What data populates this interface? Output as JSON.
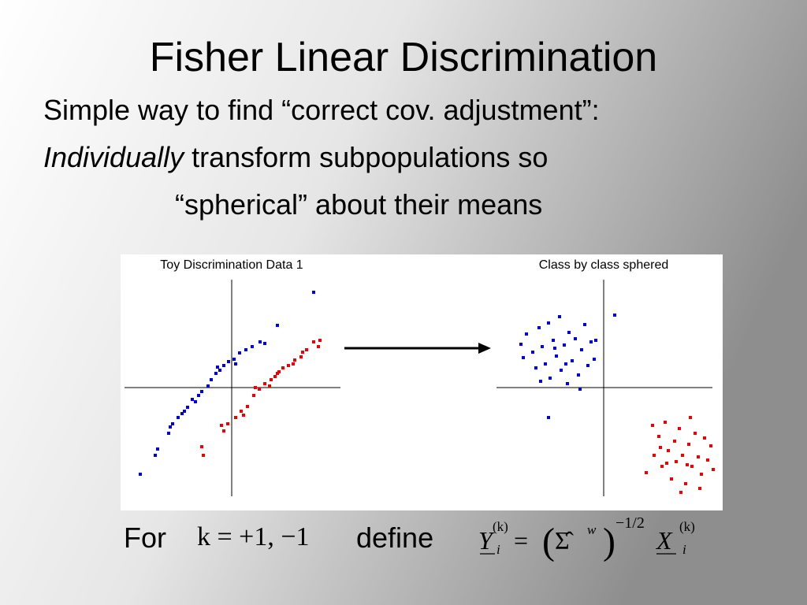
{
  "slide": {
    "title": "Fisher Linear Discrimination",
    "line1": "Simple way to find “correct cov. adjustment”:",
    "line2_italic": "Individually",
    "line2_rest": " transform subpopulations so",
    "line3": "“spherical” about their means"
  },
  "formula": {
    "for": "For",
    "k": "k = +1, −1",
    "define": "define",
    "lhs": "Y",
    "lhs_sup": "(k)",
    "lhs_sub": "i",
    "eq": "=",
    "lparen": "(",
    "sigma": "Σ̂",
    "sigma_sup": "w",
    "rparen": ")",
    "power": "−1/2",
    "rhs": "X",
    "rhs_sup": "(k)",
    "rhs_sub": "i"
  },
  "chart_data": [
    {
      "type": "scatter",
      "title": "Toy Discrimination Data 1",
      "xlim": [
        -14,
        14
      ],
      "ylim": [
        -14,
        14
      ],
      "series": [
        {
          "color": "#0000dd",
          "x": [
            -11.6,
            -9.7,
            -9.4,
            -8.0,
            -7.5,
            -6.8,
            -6.3,
            -5.6,
            -5.0,
            -4.6,
            -3.8,
            -3.0,
            -2.6,
            -2.0,
            -1.5,
            -1.0,
            -0.4,
            0.3,
            1.0,
            1.8,
            2.6,
            3.6,
            4.2,
            5.8,
            10.4,
            -7.8,
            -4.2,
            -1.8,
            -6.0,
            0.5
          ],
          "values": [
            -11.0,
            -8.6,
            -7.8,
            -5.8,
            -4.6,
            -3.8,
            -3.3,
            -2.5,
            -1.5,
            -1.8,
            -0.5,
            0.2,
            1.0,
            1.8,
            2.2,
            2.8,
            3.3,
            3.6,
            4.4,
            4.8,
            5.2,
            5.8,
            5.6,
            7.9,
            12.1,
            -5.0,
            -1.0,
            2.6,
            -3.0,
            3.0
          ]
        },
        {
          "color": "#ee0000",
          "x": [
            -1.3,
            -0.5,
            0.5,
            1.2,
            2.0,
            2.8,
            3.5,
            4.2,
            5.0,
            5.8,
            6.5,
            7.2,
            8.0,
            8.8,
            9.5,
            10.4,
            11.2,
            3.0,
            6.0,
            9.0,
            1.5,
            7.8,
            4.8,
            -3.8,
            -3.6,
            -1.0,
            11.0,
            5.5
          ],
          "values": [
            -4.8,
            -4.6,
            -3.8,
            -3.0,
            -2.4,
            -1.0,
            -0.2,
            0.5,
            1.0,
            1.8,
            2.5,
            2.8,
            3.5,
            3.9,
            4.8,
            5.8,
            6.0,
            0.0,
            2.0,
            4.5,
            -3.5,
            3.0,
            0.2,
            -7.5,
            -8.6,
            -5.5,
            5.2,
            1.4
          ]
        }
      ]
    },
    {
      "type": "scatter",
      "title": "Class by class sphered",
      "xlim": [
        -14,
        14
      ],
      "ylim": [
        -14,
        14
      ],
      "series": [
        {
          "color": "#0000dd",
          "x": [
            -10.5,
            -10.2,
            -9.8,
            -9.0,
            -8.6,
            -8.2,
            -7.8,
            -7.4,
            -7.0,
            -6.8,
            -6.4,
            -6.0,
            -5.6,
            -5.4,
            -5.0,
            -4.6,
            -4.4,
            -4.0,
            -3.6,
            -3.2,
            -2.8,
            -2.4,
            -2.0,
            -1.6,
            -1.2,
            -1.0,
            -3.0,
            -8.0,
            1.4,
            -7.0,
            -6.2,
            -4.8
          ],
          "values": [
            5.5,
            3.8,
            6.8,
            4.5,
            2.5,
            7.6,
            5.2,
            3.0,
            8.2,
            1.2,
            6.0,
            4.0,
            9.0,
            2.2,
            5.4,
            0.5,
            7.0,
            3.4,
            6.2,
            1.6,
            4.8,
            8.0,
            2.8,
            5.8,
            3.6,
            6.0,
            -0.2,
            0.8,
            9.2,
            -3.8,
            5.0,
            3.0
          ]
        },
        {
          "color": "#ee0000",
          "x": [
            5.4,
            6.2,
            6.4,
            7.0,
            7.4,
            7.8,
            8.2,
            8.6,
            9.0,
            9.2,
            9.6,
            10.0,
            10.4,
            10.8,
            11.2,
            11.6,
            12.0,
            12.4,
            12.8,
            13.2,
            13.6,
            13.9,
            9.8,
            11.0,
            8.0,
            12.2,
            7.2,
            10.6
          ],
          "values": [
            -10.8,
            -4.8,
            -8.6,
            -6.2,
            -10.0,
            -4.4,
            -8.0,
            -11.6,
            -6.8,
            -9.4,
            -5.2,
            -8.6,
            -12.2,
            -7.2,
            -10.0,
            -5.8,
            -8.8,
            -11.0,
            -6.4,
            -9.2,
            -7.4,
            -10.4,
            -13.3,
            -3.8,
            -9.6,
            -12.8,
            -7.6,
            -9.8
          ]
        }
      ]
    }
  ]
}
